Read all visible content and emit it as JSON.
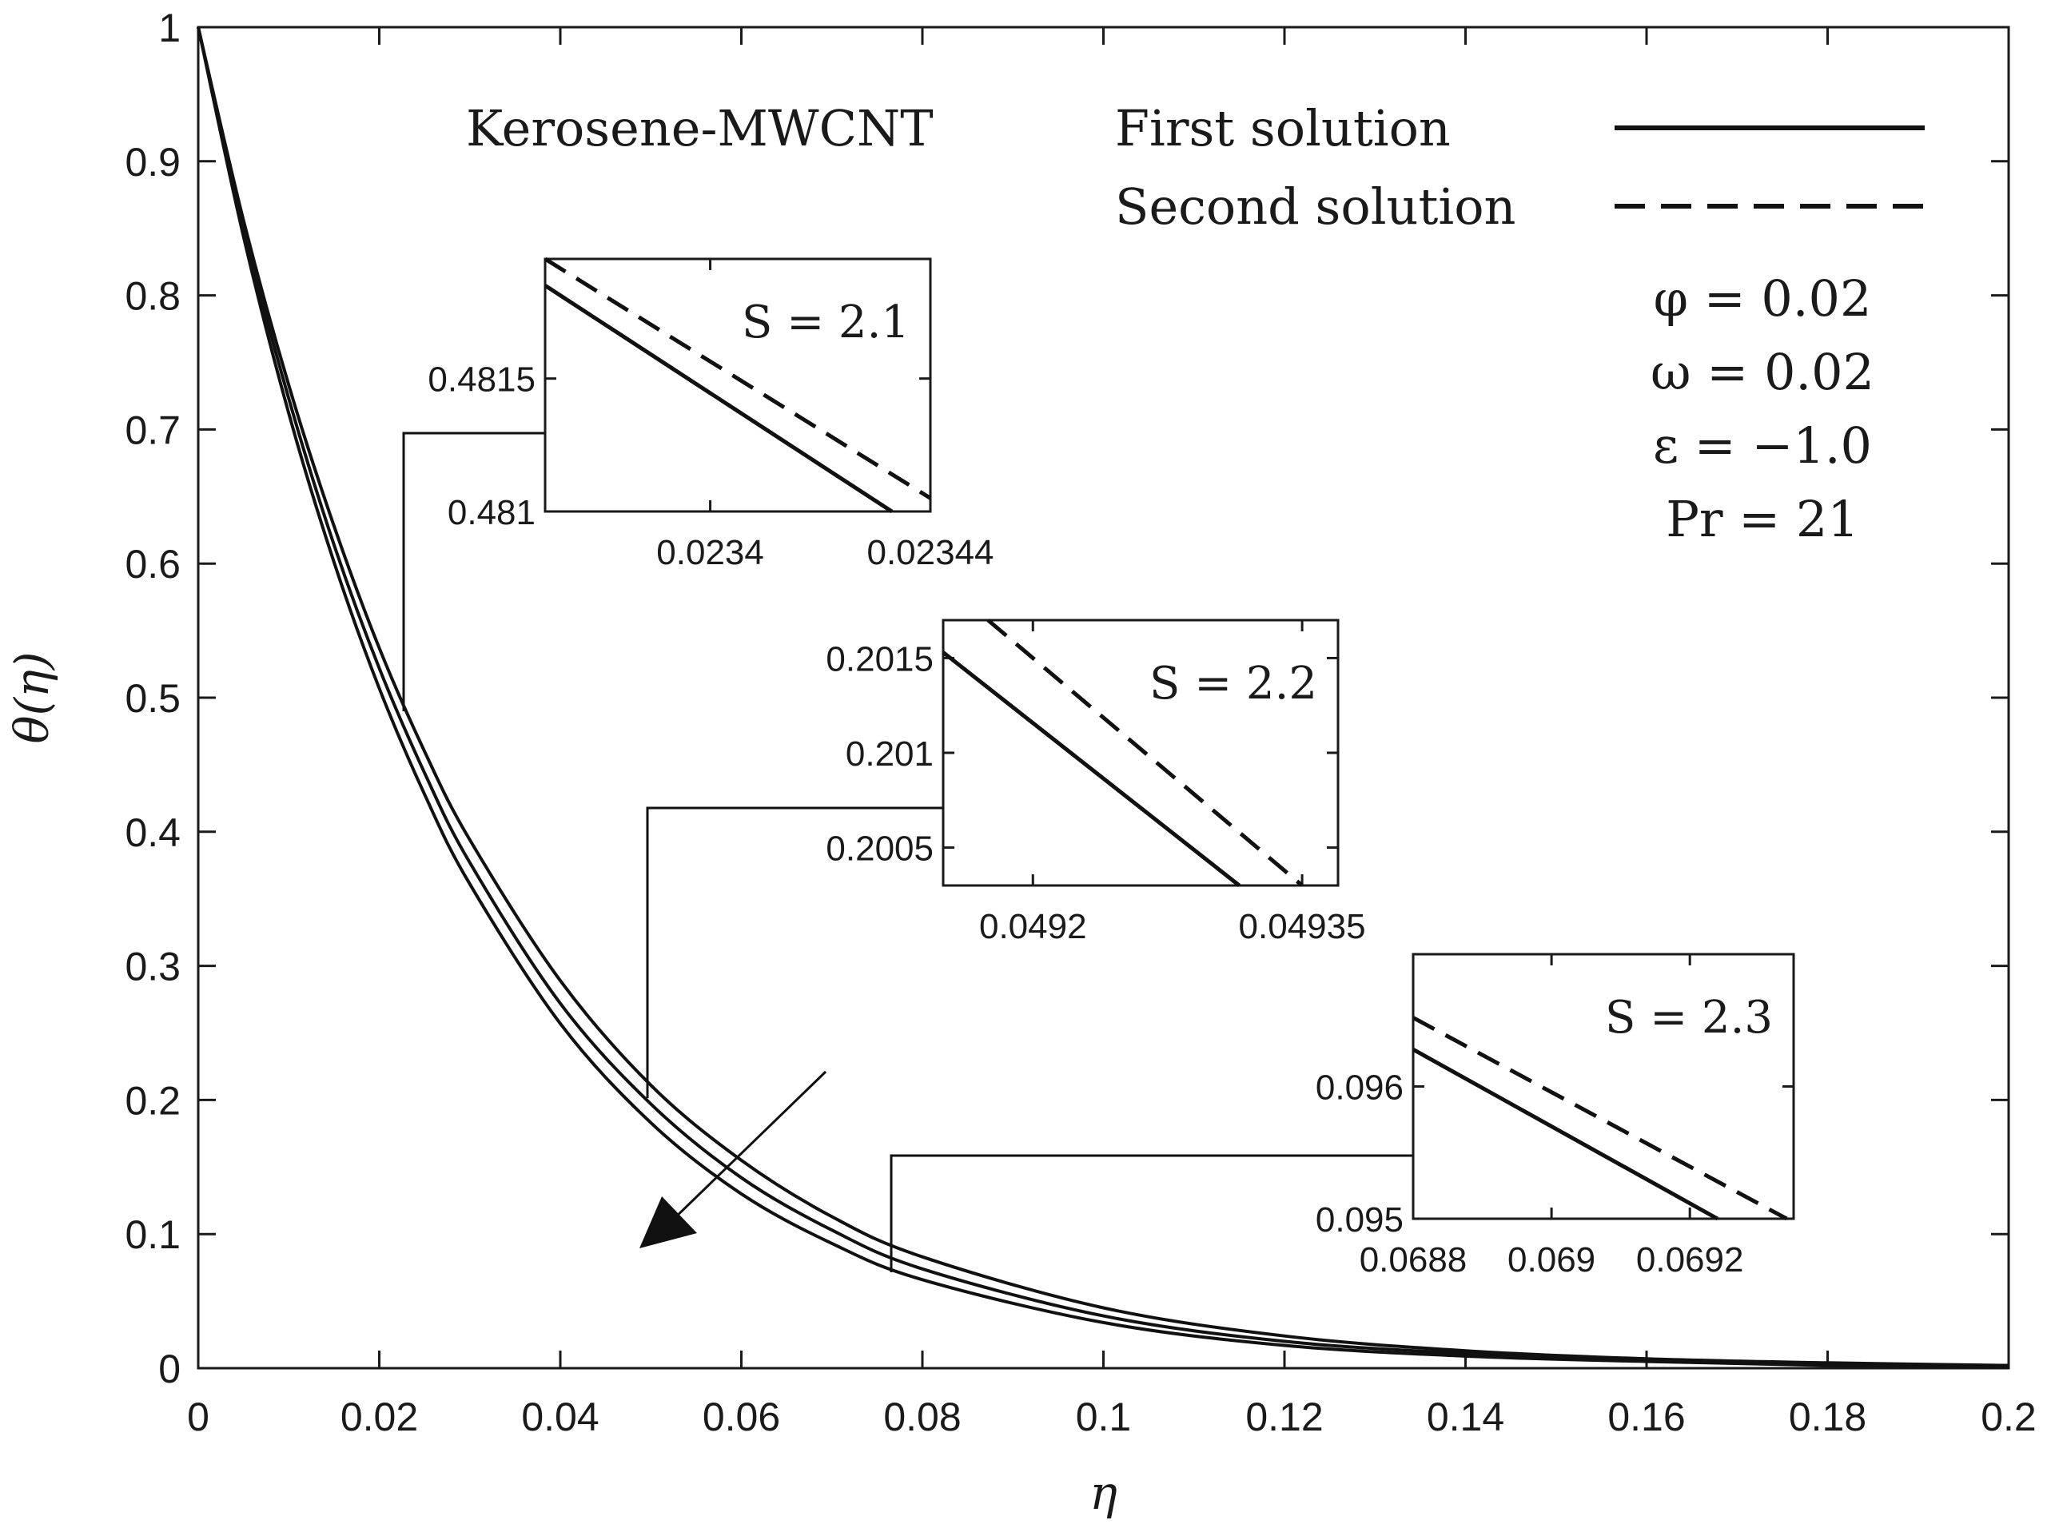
{
  "chart_data": [
    {
      "type": "line",
      "title": "",
      "xlabel": "η",
      "ylabel": "θ(η)",
      "xlim": [
        0,
        0.2
      ],
      "ylim": [
        0,
        1
      ],
      "x_ticks": [
        "0",
        "0.02",
        "0.04",
        "0.06",
        "0.08",
        "0.1",
        "0.12",
        "0.14",
        "0.16",
        "0.18",
        "0.2"
      ],
      "y_ticks": [
        "0",
        "0.1",
        "0.2",
        "0.3",
        "0.4",
        "0.5",
        "0.6",
        "0.7",
        "0.8",
        "0.9",
        "1"
      ],
      "grid": false,
      "legend_position": "top-right",
      "legend": [
        {
          "label": "First solution",
          "style": "solid"
        },
        {
          "label": "Second solution",
          "style": "dashed"
        }
      ],
      "fluid_label": "Kerosene-MWCNT",
      "parameters": [
        "φ = 0.02",
        "ω = 0.02",
        "ε = −1.0",
        "Pr = 21"
      ],
      "arrow_annotation": "increasing S",
      "series": [
        {
          "S": "2.1",
          "style": "solid",
          "x": [
            0,
            0.005,
            0.01,
            0.015,
            0.02,
            0.025,
            0.03,
            0.04,
            0.05,
            0.06,
            0.07,
            0.08,
            0.1,
            0.12,
            0.14,
            0.16,
            0.18,
            0.2
          ],
          "y": [
            1,
            0.856,
            0.733,
            0.628,
            0.537,
            0.46,
            0.394,
            0.289,
            0.211,
            0.155,
            0.113,
            0.083,
            0.045,
            0.024,
            0.013,
            0.007,
            0.004,
            0.002
          ]
        },
        {
          "S": "2.2",
          "style": "solid",
          "x": [
            0,
            0.005,
            0.01,
            0.015,
            0.02,
            0.025,
            0.03,
            0.04,
            0.05,
            0.06,
            0.07,
            0.08,
            0.1,
            0.12,
            0.14,
            0.16,
            0.18,
            0.2
          ],
          "y": [
            1,
            0.85,
            0.723,
            0.614,
            0.522,
            0.444,
            0.377,
            0.272,
            0.197,
            0.142,
            0.103,
            0.074,
            0.039,
            0.02,
            0.011,
            0.006,
            0.003,
            0.002
          ]
        },
        {
          "S": "2.3",
          "style": "solid",
          "x": [
            0,
            0.005,
            0.01,
            0.015,
            0.02,
            0.025,
            0.03,
            0.04,
            0.05,
            0.06,
            0.07,
            0.08,
            0.1,
            0.12,
            0.14,
            0.16,
            0.18,
            0.2
          ],
          "y": [
            1,
            0.844,
            0.712,
            0.601,
            0.507,
            0.428,
            0.361,
            0.257,
            0.183,
            0.13,
            0.093,
            0.066,
            0.034,
            0.017,
            0.009,
            0.005,
            0.002,
            0.001
          ]
        }
      ]
    },
    {
      "type": "line",
      "title": "S = 2.1",
      "xlim": [
        0.02337,
        0.02344
      ],
      "ylim": [
        0.481,
        0.48195
      ],
      "x_ticks": [
        "0.0234",
        "0.02344"
      ],
      "y_ticks": [
        "0.481",
        "0.4815"
      ],
      "series": [
        {
          "name": "First solution",
          "style": "solid",
          "x": [
            0.02337,
            0.023433
          ],
          "y": [
            0.48185,
            0.481
          ]
        },
        {
          "name": "Second solution",
          "style": "dashed",
          "x": [
            0.02337,
            0.02344
          ],
          "y": [
            0.48195,
            0.48105
          ]
        }
      ]
    },
    {
      "type": "line",
      "title": "S = 2.2",
      "xlim": [
        0.04915,
        0.04937
      ],
      "ylim": [
        0.2003,
        0.2017
      ],
      "x_ticks": [
        "0.0492",
        "0.04935"
      ],
      "y_ticks": [
        "0.2005",
        "0.201",
        "0.2015"
      ],
      "series": [
        {
          "name": "First solution",
          "style": "solid",
          "x": [
            0.04915,
            0.049315
          ],
          "y": [
            0.20153,
            0.2003
          ]
        },
        {
          "name": "Second solution",
          "style": "dashed",
          "x": [
            0.049175,
            0.04935
          ],
          "y": [
            0.2017,
            0.2003
          ]
        }
      ]
    },
    {
      "type": "line",
      "title": "S = 2.3",
      "xlim": [
        0.0688,
        0.06935
      ],
      "ylim": [
        0.095,
        0.097
      ],
      "x_ticks": [
        "0.0688",
        "0.069",
        "0.0692"
      ],
      "y_ticks": [
        "0.095",
        "0.096"
      ],
      "series": [
        {
          "name": "First solution",
          "style": "solid",
          "x": [
            0.0688,
            0.06924
          ],
          "y": [
            0.09628,
            0.095
          ]
        },
        {
          "name": "Second solution",
          "style": "dashed",
          "x": [
            0.0688,
            0.06934
          ],
          "y": [
            0.09652,
            0.095
          ]
        }
      ]
    }
  ]
}
